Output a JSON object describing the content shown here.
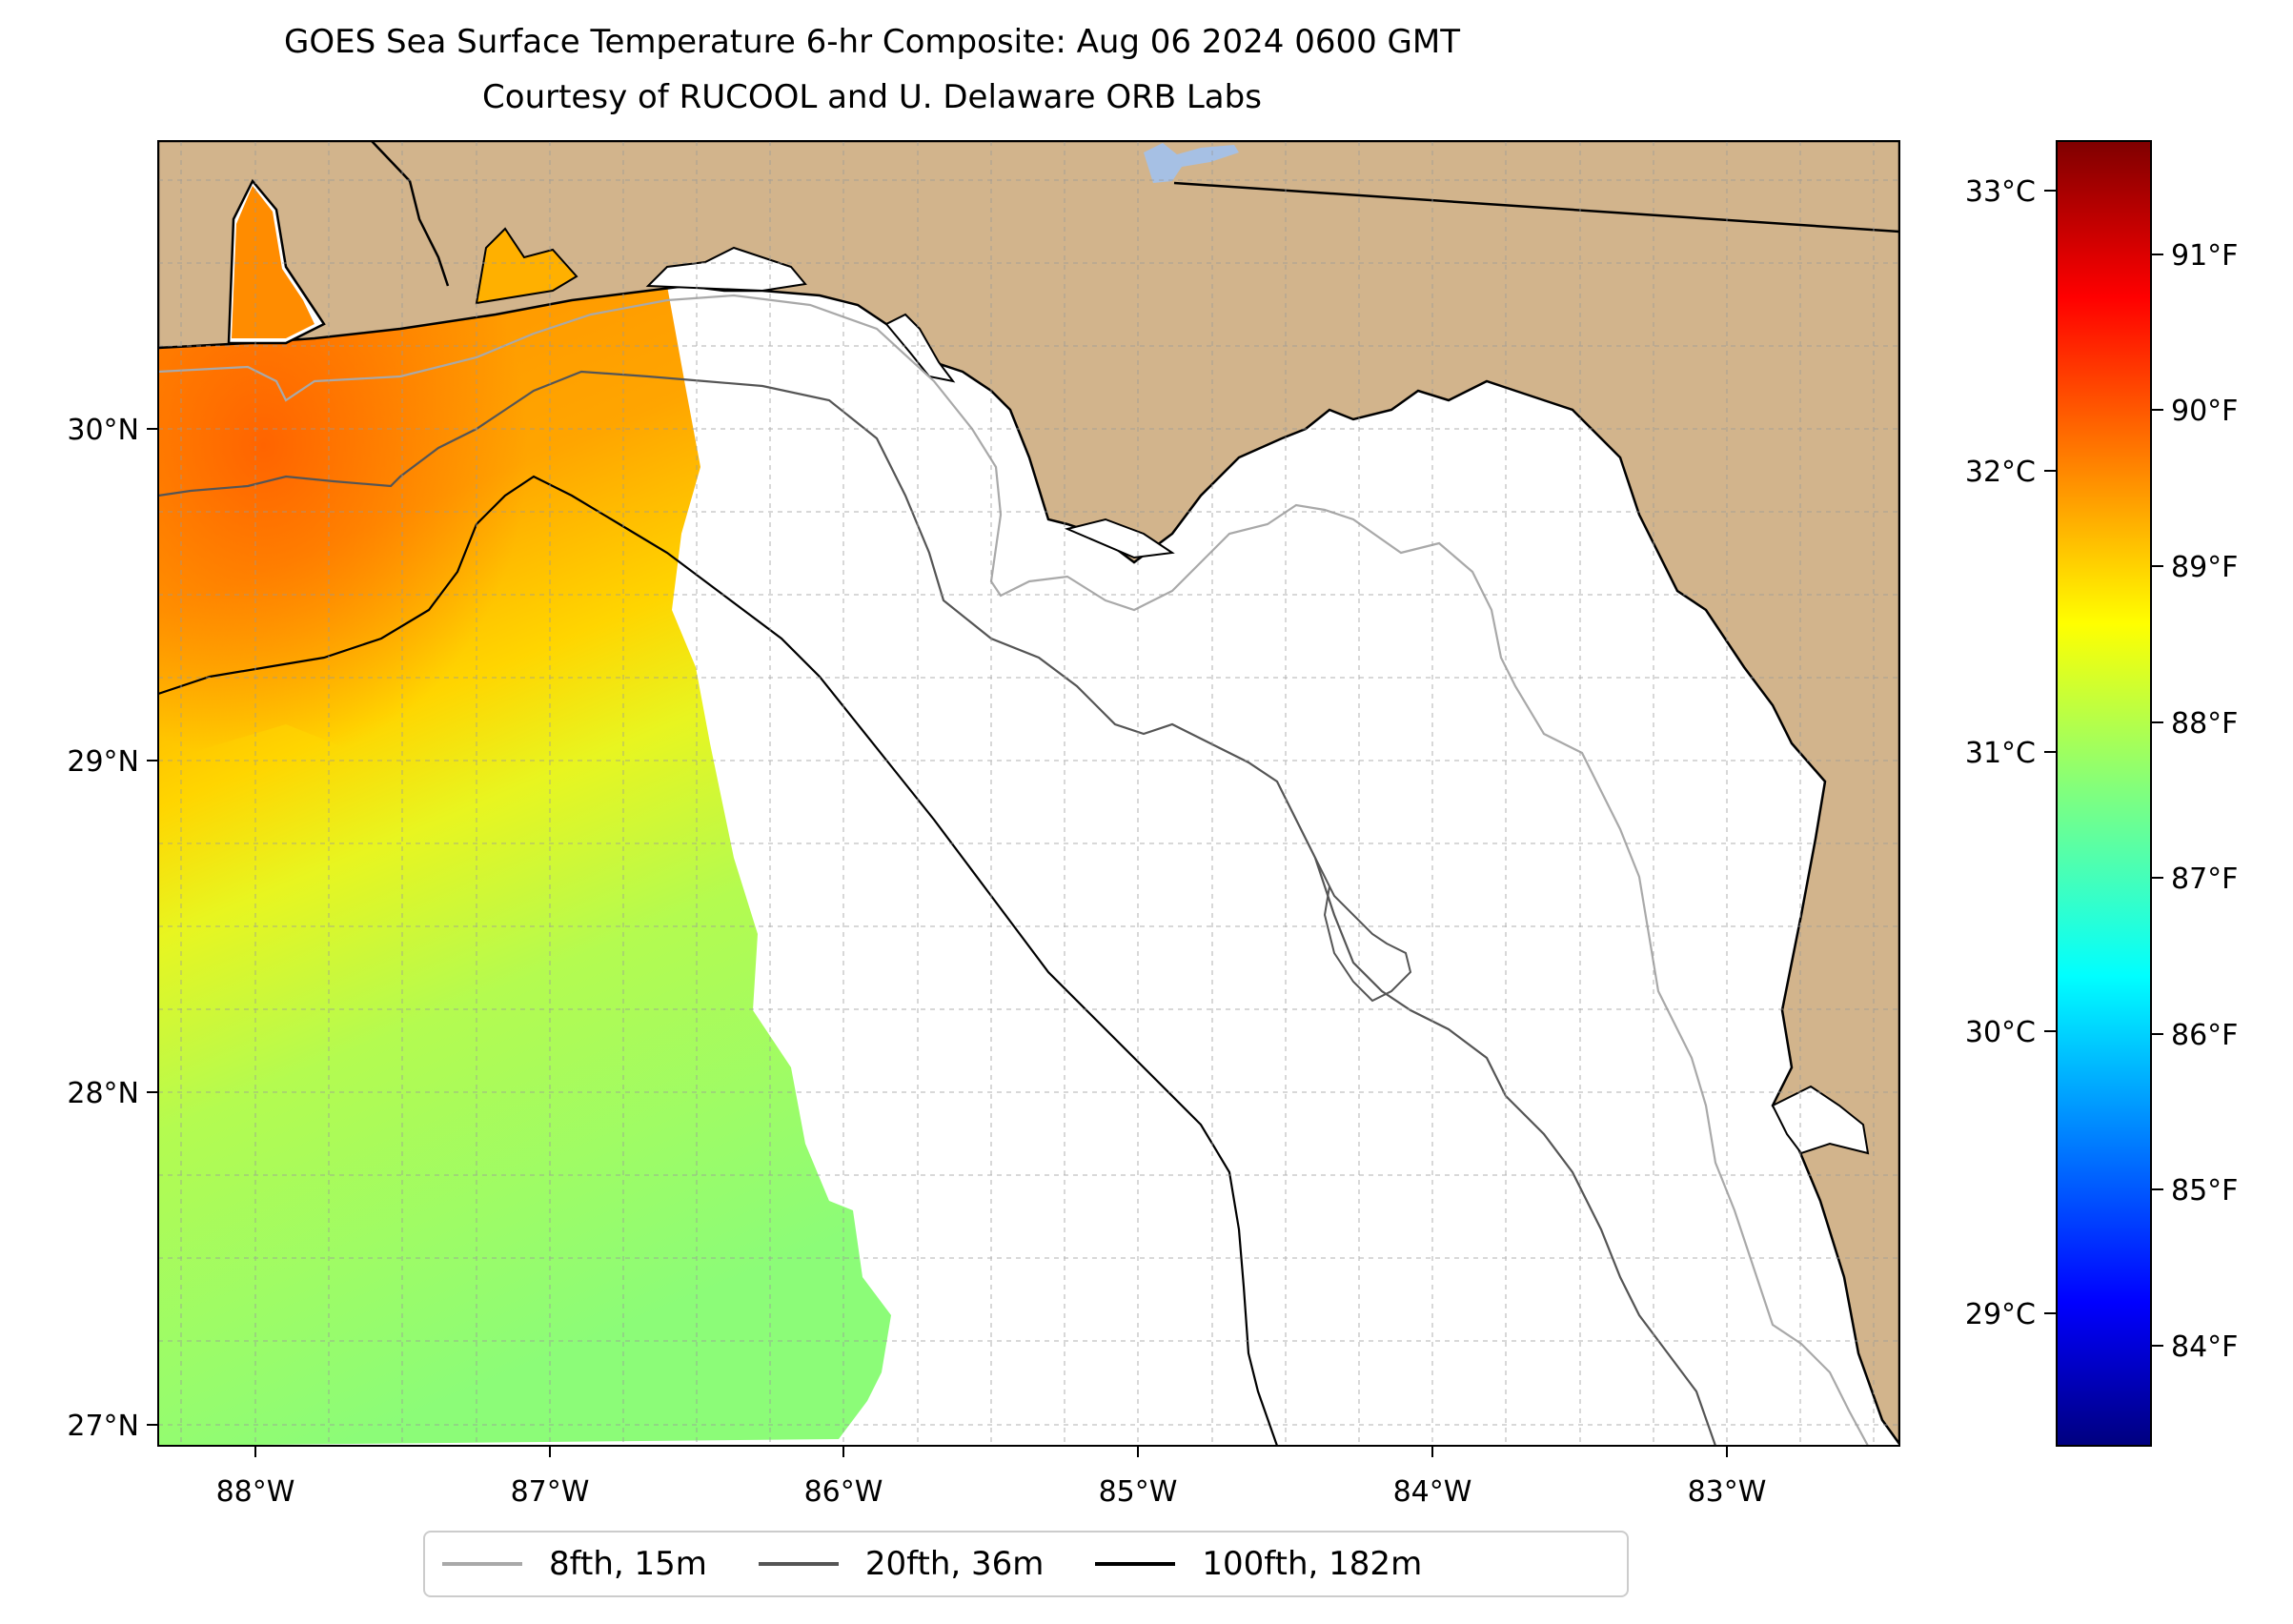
{
  "title": "GOES Sea Surface Temperature 6-hr Composite: Aug 06 2024 0600 GMT",
  "subtitle": "Courtesy of RUCOOL and U. Delaware ORB Labs",
  "map": {
    "extent": {
      "lon": [
        -88.33,
        -82.38
      ],
      "lat": [
        26.93,
        30.86
      ]
    },
    "land_color": "#d2b48c",
    "lake_color": "#a6c0e4",
    "ocean_no_data_color": "#ffffff",
    "lon_ticks": [
      "88°W",
      "87°W",
      "86°W",
      "85°W",
      "84°W",
      "83°W"
    ],
    "lat_ticks": [
      "27°N",
      "28°N",
      "29°N",
      "30°N"
    ],
    "gridlines": "dashed, every 0.25°"
  },
  "colorbar": {
    "colormap": "jet",
    "range_c": [
      28.5,
      33.2
    ],
    "celsius_ticks": [
      "29°C",
      "30°C",
      "31°C",
      "32°C",
      "33°C"
    ],
    "fahrenheit_ticks": [
      "84°F",
      "85°F",
      "86°F",
      "87°F",
      "88°F",
      "89°F",
      "90°F",
      "91°F"
    ]
  },
  "legend": [
    {
      "label": "8fth, 15m",
      "color": "#a9a9a9"
    },
    {
      "label": "20fth, 36m",
      "color": "#555555"
    },
    {
      "label": "100fth, 182m",
      "color": "#000000"
    }
  ]
}
